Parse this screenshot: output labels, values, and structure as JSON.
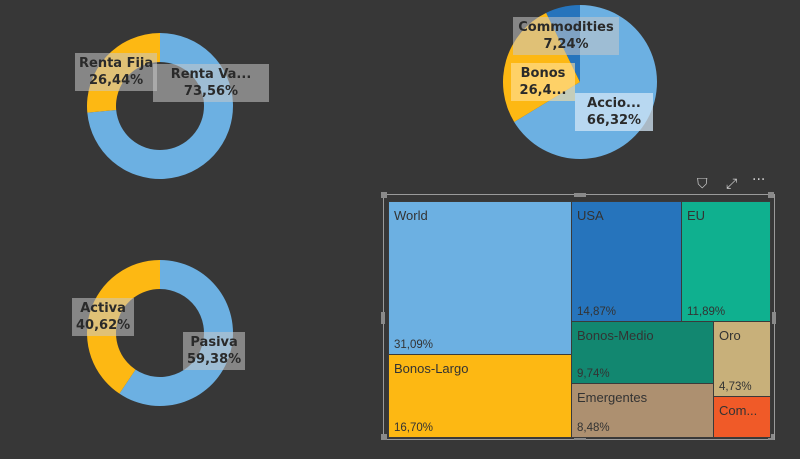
{
  "donut_top": {
    "slices": [
      {
        "label": "Renta Va...",
        "value": "73,56%",
        "pct": 73.56,
        "color": "#6cb0e2"
      },
      {
        "label": "Renta Fija",
        "value": "26,44%",
        "pct": 26.44,
        "color": "#fdb813"
      }
    ]
  },
  "pie": {
    "slices": [
      {
        "label": "Accio...",
        "value": "66,32%",
        "pct": 66.32,
        "color": "#6cb0e2"
      },
      {
        "label": "Bonos",
        "value": "26,4...",
        "pct": 26.44,
        "color": "#fdb813"
      },
      {
        "label": "Commodities",
        "value": "7,24%",
        "pct": 7.24,
        "color": "#2674bc"
      }
    ]
  },
  "donut_bottom": {
    "slices": [
      {
        "label": "Pasiva",
        "value": "59,38%",
        "pct": 59.38,
        "color": "#6cb0e2"
      },
      {
        "label": "Activa",
        "value": "40,62%",
        "pct": 40.62,
        "color": "#fdb813"
      }
    ]
  },
  "treemap": {
    "cells": [
      {
        "label": "World",
        "value": "31,09%",
        "color": "#6cb0e2"
      },
      {
        "label": "USA",
        "value": "14,87%",
        "color": "#2674bc"
      },
      {
        "label": "EU",
        "value": "11,89%",
        "color": "#0fb08f"
      },
      {
        "label": "Bonos-Largo",
        "value": "16,70%",
        "color": "#fdb813"
      },
      {
        "label": "Bonos-Medio",
        "value": "9,74%",
        "color": "#128770"
      },
      {
        "label": "Oro",
        "value": "4,73%",
        "color": "#c8b07a"
      },
      {
        "label": "Emergentes",
        "value": "8,48%",
        "color": "#ad9070"
      },
      {
        "label": "Com...",
        "value": "",
        "color": "#f05a28"
      }
    ]
  },
  "toolbar": {
    "filter": "⛉",
    "focus": "⤢",
    "more": "···"
  }
}
